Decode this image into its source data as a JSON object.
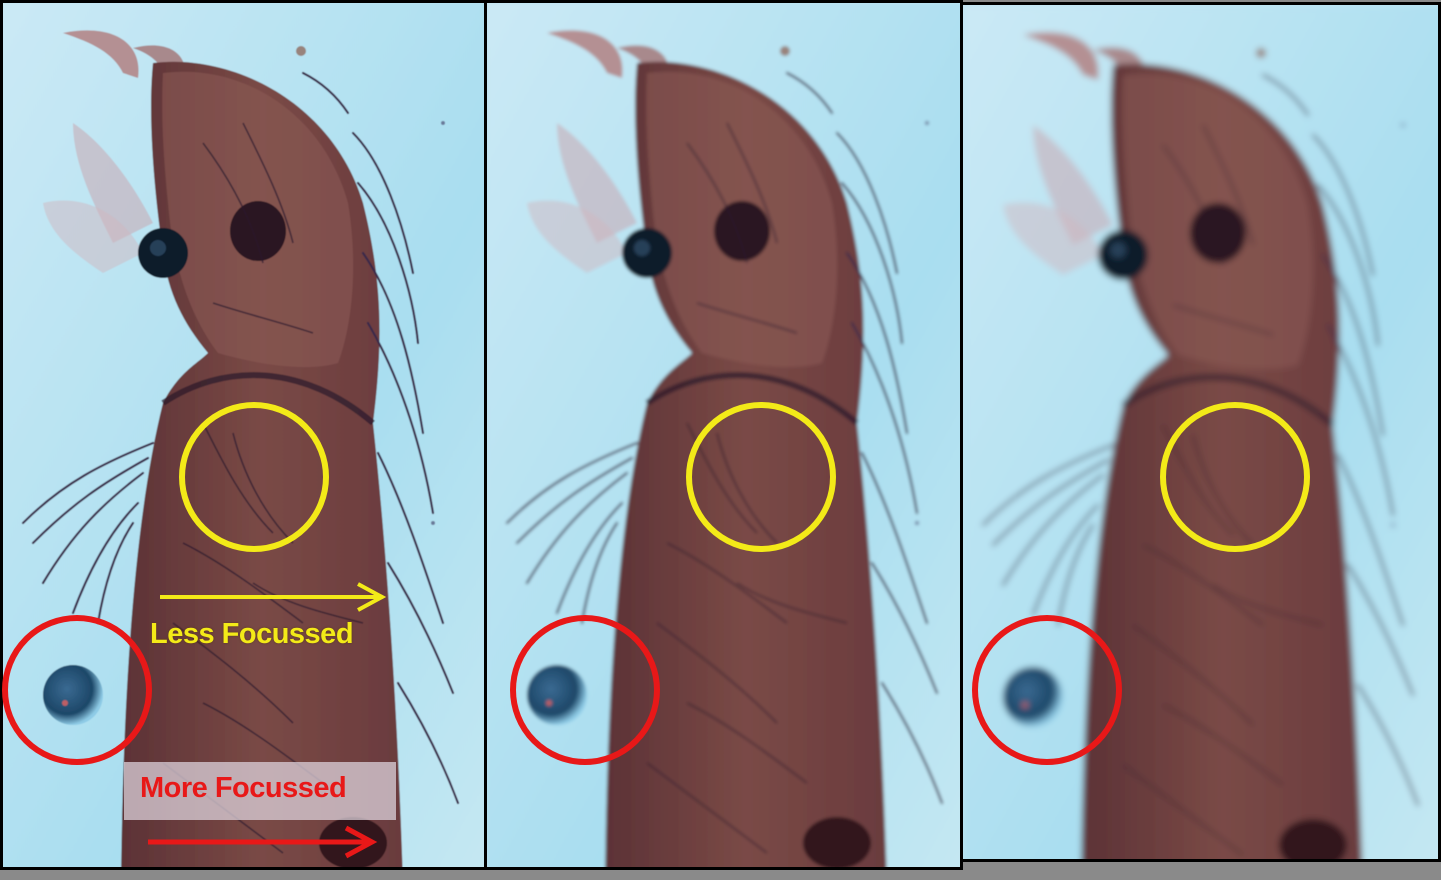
{
  "annotations": {
    "less_focussed": "Less Focussed",
    "more_focussed": "More Focussed"
  },
  "colors": {
    "background": "#bfe4f2",
    "specimen": "#6b3b3c",
    "yellow_marker": "#f3ea18",
    "red_marker": "#e81818"
  },
  "panels": [
    {
      "focus": "sharp"
    },
    {
      "focus": "medium"
    },
    {
      "focus": "blurred"
    }
  ]
}
